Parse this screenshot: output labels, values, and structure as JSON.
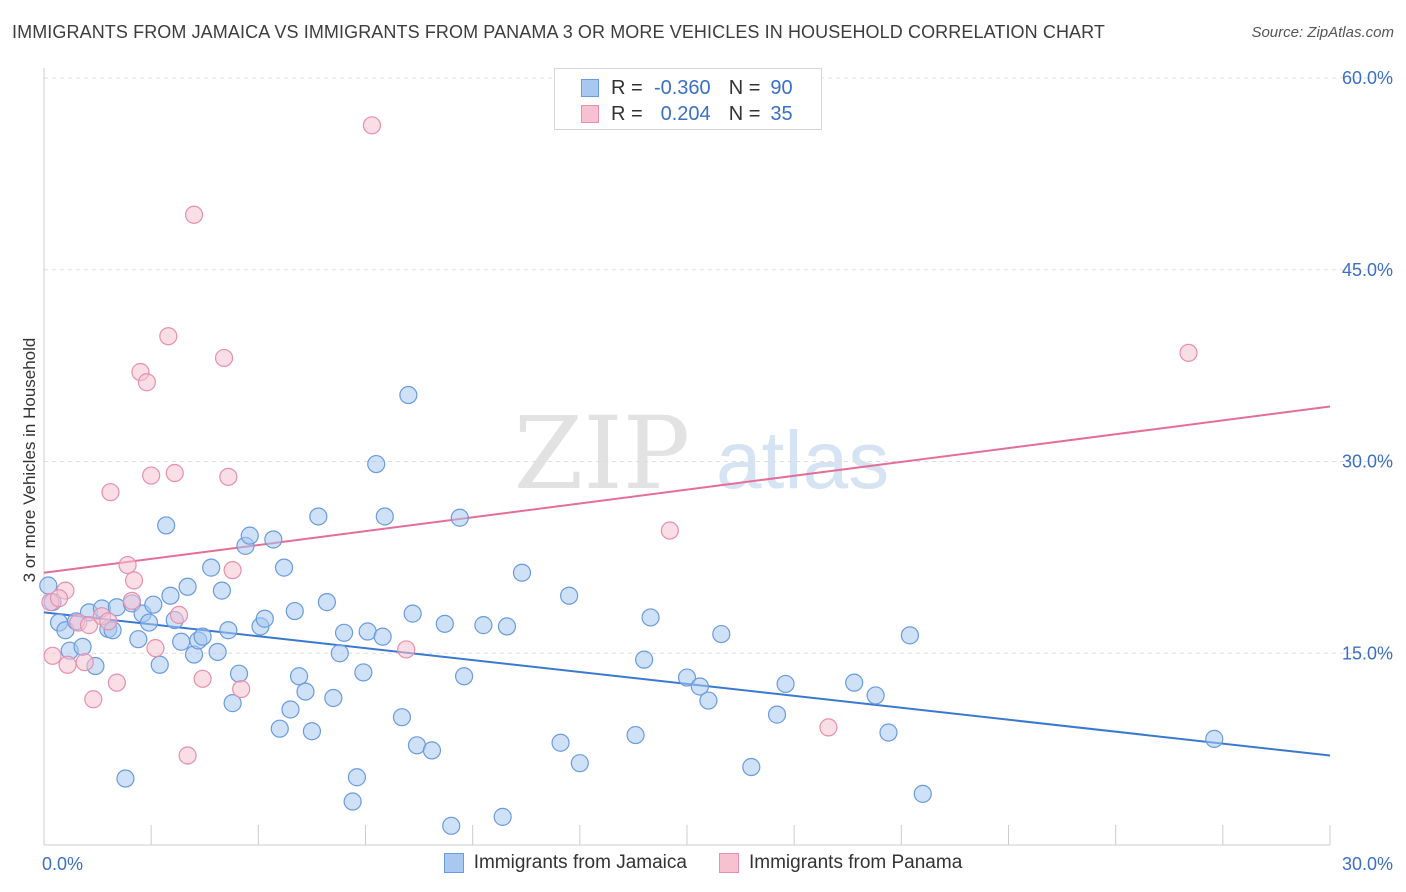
{
  "chart_data": {
    "type": "scatter",
    "title": "IMMIGRANTS FROM JAMAICA VS IMMIGRANTS FROM PANAMA 3 OR MORE VEHICLES IN HOUSEHOLD CORRELATION CHART",
    "source": "Source: ZipAtlas.com",
    "xlabel": "",
    "ylabel": "3 or more Vehicles in Household",
    "xlim": [
      0,
      30
    ],
    "ylim": [
      0,
      60
    ],
    "x_tick_labels": [
      {
        "value": 0,
        "label": "0.0%"
      },
      {
        "value": 30,
        "label": "30.0%"
      }
    ],
    "y_tick_labels": [
      {
        "value": 15,
        "label": "15.0%"
      },
      {
        "value": 30,
        "label": "30.0%"
      },
      {
        "value": 45,
        "label": "45.0%"
      },
      {
        "value": 60,
        "label": "60.0%"
      }
    ],
    "watermark": {
      "part1": "ZIP",
      "part2": "atlas"
    },
    "legend": {
      "rows": [
        {
          "r_label": "R =",
          "r_value": "-0.360",
          "n_label": "N =",
          "n_value": "90",
          "series": "jamaica"
        },
        {
          "r_label": "R =",
          "r_value": "0.204",
          "n_label": "N =",
          "n_value": "35",
          "series": "panama"
        }
      ]
    },
    "series": [
      {
        "name": "Immigrants from Jamaica",
        "key": "jamaica",
        "fill": "#a8c8f0",
        "stroke": "#6a9be0",
        "line_color": "#3b78d0",
        "trend": {
          "x0": 0,
          "y0": 18.2,
          "x1": 30,
          "y1": 7.0
        },
        "points": [
          [
            0.1,
            20.3
          ],
          [
            0.2,
            19.0
          ],
          [
            0.35,
            17.4
          ],
          [
            0.5,
            16.8
          ],
          [
            0.6,
            15.2
          ],
          [
            0.75,
            17.5
          ],
          [
            0.9,
            15.5
          ],
          [
            1.05,
            18.2
          ],
          [
            1.2,
            14.0
          ],
          [
            1.35,
            18.5
          ],
          [
            1.5,
            16.9
          ],
          [
            1.6,
            16.8
          ],
          [
            1.7,
            18.6
          ],
          [
            1.9,
            5.2
          ],
          [
            2.05,
            18.9
          ],
          [
            2.2,
            16.1
          ],
          [
            2.3,
            18.1
          ],
          [
            2.45,
            17.4
          ],
          [
            2.55,
            18.8
          ],
          [
            2.7,
            14.1
          ],
          [
            2.85,
            25.0
          ],
          [
            2.95,
            19.5
          ],
          [
            3.05,
            17.6
          ],
          [
            3.2,
            15.9
          ],
          [
            3.35,
            20.2
          ],
          [
            3.5,
            14.9
          ],
          [
            3.6,
            16.0
          ],
          [
            3.7,
            16.3
          ],
          [
            3.9,
            21.7
          ],
          [
            4.05,
            15.1
          ],
          [
            4.15,
            19.9
          ],
          [
            4.3,
            16.8
          ],
          [
            4.4,
            11.1
          ],
          [
            4.55,
            13.4
          ],
          [
            4.7,
            23.4
          ],
          [
            4.8,
            24.2
          ],
          [
            5.05,
            17.1
          ],
          [
            5.15,
            17.7
          ],
          [
            5.35,
            23.9
          ],
          [
            5.5,
            9.1
          ],
          [
            5.6,
            21.7
          ],
          [
            5.75,
            10.6
          ],
          [
            5.85,
            18.3
          ],
          [
            5.95,
            13.2
          ],
          [
            6.1,
            12.0
          ],
          [
            6.25,
            8.9
          ],
          [
            6.4,
            25.7
          ],
          [
            6.6,
            19.0
          ],
          [
            6.75,
            11.5
          ],
          [
            6.9,
            15.0
          ],
          [
            7.0,
            16.6
          ],
          [
            7.2,
            3.4
          ],
          [
            7.3,
            5.3
          ],
          [
            7.45,
            13.5
          ],
          [
            7.55,
            16.7
          ],
          [
            7.75,
            29.8
          ],
          [
            7.9,
            16.3
          ],
          [
            7.95,
            25.7
          ],
          [
            8.35,
            10.0
          ],
          [
            8.5,
            35.2
          ],
          [
            8.6,
            18.1
          ],
          [
            8.7,
            7.8
          ],
          [
            9.05,
            7.4
          ],
          [
            9.35,
            17.3
          ],
          [
            9.5,
            1.5
          ],
          [
            9.7,
            25.6
          ],
          [
            9.8,
            13.2
          ],
          [
            10.25,
            17.2
          ],
          [
            10.7,
            2.2
          ],
          [
            10.8,
            17.1
          ],
          [
            11.15,
            21.3
          ],
          [
            12.05,
            8.0
          ],
          [
            12.25,
            19.5
          ],
          [
            12.5,
            6.4
          ],
          [
            13.8,
            8.6
          ],
          [
            14.0,
            14.5
          ],
          [
            14.15,
            17.8
          ],
          [
            15.0,
            13.1
          ],
          [
            15.3,
            12.4
          ],
          [
            15.5,
            11.3
          ],
          [
            15.8,
            16.5
          ],
          [
            16.5,
            6.1
          ],
          [
            17.1,
            10.2
          ],
          [
            17.3,
            12.6
          ],
          [
            18.9,
            12.7
          ],
          [
            19.4,
            11.7
          ],
          [
            19.7,
            8.8
          ],
          [
            20.2,
            16.4
          ],
          [
            20.5,
            4.0
          ],
          [
            27.3,
            8.3
          ]
        ]
      },
      {
        "name": "Immigrants from Panama",
        "key": "panama",
        "fill": "#f6c2d2",
        "stroke": "#e88fad",
        "line_color": "#e46e98",
        "trend": {
          "x0": 0,
          "y0": 21.3,
          "x1": 30,
          "y1": 34.3
        },
        "points": [
          [
            0.15,
            19.0
          ],
          [
            0.2,
            14.8
          ],
          [
            0.5,
            19.9
          ],
          [
            0.55,
            14.1
          ],
          [
            0.8,
            17.4
          ],
          [
            0.95,
            14.3
          ],
          [
            1.05,
            17.2
          ],
          [
            1.15,
            11.4
          ],
          [
            1.35,
            17.9
          ],
          [
            1.5,
            17.5
          ],
          [
            1.55,
            27.6
          ],
          [
            1.7,
            12.7
          ],
          [
            1.95,
            21.9
          ],
          [
            2.05,
            19.1
          ],
          [
            2.1,
            20.7
          ],
          [
            2.25,
            37.0
          ],
          [
            2.4,
            36.2
          ],
          [
            2.5,
            28.9
          ],
          [
            2.6,
            15.4
          ],
          [
            2.9,
            39.8
          ],
          [
            3.05,
            29.1
          ],
          [
            3.15,
            18.0
          ],
          [
            3.35,
            7.0
          ],
          [
            3.5,
            49.3
          ],
          [
            3.7,
            13.0
          ],
          [
            4.2,
            38.1
          ],
          [
            4.3,
            28.8
          ],
          [
            4.4,
            21.5
          ],
          [
            4.6,
            12.2
          ],
          [
            7.65,
            56.3
          ],
          [
            8.45,
            15.3
          ],
          [
            14.6,
            24.6
          ],
          [
            18.3,
            9.2
          ],
          [
            26.7,
            38.5
          ],
          [
            0.35,
            19.3
          ]
        ]
      }
    ]
  }
}
